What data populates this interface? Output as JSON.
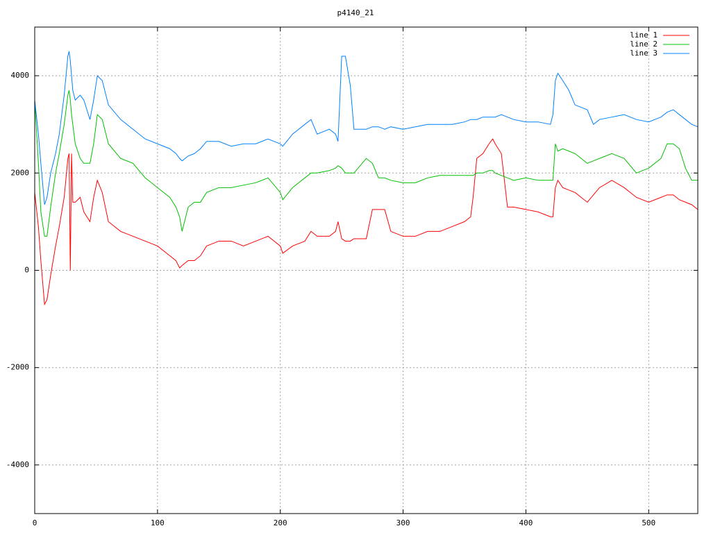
{
  "chart_data": {
    "type": "line",
    "title": "p4140_21",
    "x": [
      0,
      3,
      5,
      8,
      10,
      13,
      17,
      20,
      24,
      27,
      28,
      29,
      30,
      31,
      33,
      37,
      40,
      45,
      48,
      51,
      55,
      60,
      70,
      80,
      90,
      100,
      110,
      115,
      118,
      120,
      125,
      130,
      135,
      140,
      150,
      160,
      170,
      180,
      190,
      200,
      202,
      210,
      220,
      225,
      230,
      240,
      245,
      247,
      250,
      253,
      257,
      260,
      270,
      275,
      280,
      285,
      290,
      300,
      310,
      320,
      330,
      340,
      350,
      355,
      357,
      360,
      365,
      370,
      373,
      375,
      380,
      385,
      390,
      400,
      410,
      420,
      422,
      424,
      426,
      430,
      435,
      440,
      450,
      455,
      460,
      470,
      480,
      490,
      500,
      510,
      515,
      520,
      525,
      530,
      535,
      540
    ],
    "series": [
      {
        "name": "line 1",
        "color": "#ff0000",
        "values": [
          1600,
          900,
          200,
          -700,
          -600,
          -100,
          500,
          900,
          1500,
          2300,
          2400,
          0,
          2400,
          1400,
          1400,
          1500,
          1200,
          1000,
          1500,
          1850,
          1600,
          1000,
          800,
          700,
          600,
          500,
          300,
          200,
          50,
          100,
          200,
          200,
          300,
          500,
          600,
          600,
          500,
          600,
          700,
          500,
          350,
          500,
          600,
          800,
          700,
          700,
          800,
          1000,
          650,
          600,
          600,
          650,
          650,
          1250,
          1250,
          1250,
          800,
          700,
          700,
          800,
          800,
          900,
          1000,
          1100,
          1500,
          2300,
          2400,
          2600,
          2700,
          2600,
          2400,
          1300,
          1300,
          1250,
          1200,
          1100,
          1100,
          1700,
          1850,
          1700,
          1650,
          1600,
          1400,
          1550,
          1700,
          1850,
          1700,
          1500,
          1400,
          1500,
          1550,
          1550,
          1450,
          1400,
          1350,
          1250
        ]
      },
      {
        "name": "line 2",
        "color": "#00c000",
        "values": [
          3500,
          2200,
          1200,
          700,
          700,
          1300,
          2000,
          2400,
          3000,
          3600,
          3700,
          3500,
          3200,
          3000,
          2600,
          2300,
          2200,
          2200,
          2600,
          3200,
          3100,
          2600,
          2300,
          2200,
          1900,
          1700,
          1500,
          1300,
          1100,
          800,
          1300,
          1400,
          1400,
          1600,
          1700,
          1700,
          1750,
          1800,
          1900,
          1600,
          1450,
          1700,
          1900,
          2000,
          2000,
          2050,
          2100,
          2150,
          2100,
          2000,
          2000,
          2000,
          2300,
          2200,
          1900,
          1900,
          1850,
          1800,
          1800,
          1900,
          1950,
          1950,
          1950,
          1950,
          1950,
          2000,
          2000,
          2050,
          2050,
          2000,
          1950,
          1900,
          1850,
          1900,
          1850,
          1850,
          1850,
          2600,
          2450,
          2500,
          2450,
          2400,
          2200,
          2250,
          2300,
          2400,
          2300,
          2000,
          2100,
          2300,
          2600,
          2600,
          2500,
          2100,
          1850,
          1850
        ]
      },
      {
        "name": "line 3",
        "color": "#0080ff",
        "values": [
          3500,
          2800,
          2200,
          1350,
          1500,
          2000,
          2400,
          2800,
          3600,
          4400,
          4500,
          4300,
          4000,
          3700,
          3500,
          3600,
          3500,
          3100,
          3500,
          4000,
          3900,
          3400,
          3100,
          2900,
          2700,
          2600,
          2500,
          2400,
          2300,
          2250,
          2350,
          2400,
          2500,
          2650,
          2650,
          2550,
          2600,
          2600,
          2700,
          2600,
          2550,
          2800,
          3000,
          3100,
          2800,
          2900,
          2800,
          2650,
          4400,
          4400,
          3800,
          2900,
          2900,
          2950,
          2950,
          2900,
          2950,
          2900,
          2950,
          3000,
          3000,
          3000,
          3050,
          3100,
          3100,
          3100,
          3150,
          3150,
          3150,
          3150,
          3200,
          3150,
          3100,
          3050,
          3050,
          3000,
          3200,
          3900,
          4050,
          3900,
          3700,
          3400,
          3300,
          3000,
          3100,
          3150,
          3200,
          3100,
          3050,
          3150,
          3250,
          3300,
          3200,
          3100,
          3000,
          2950
        ]
      }
    ],
    "xlim": [
      0,
      540
    ],
    "ylim": [
      -5000,
      5000
    ],
    "xticks": [
      0,
      100,
      200,
      300,
      400,
      500
    ],
    "yticks": [
      -4000,
      -2000,
      0,
      2000,
      4000
    ],
    "grid": true,
    "legend": "top-right"
  }
}
